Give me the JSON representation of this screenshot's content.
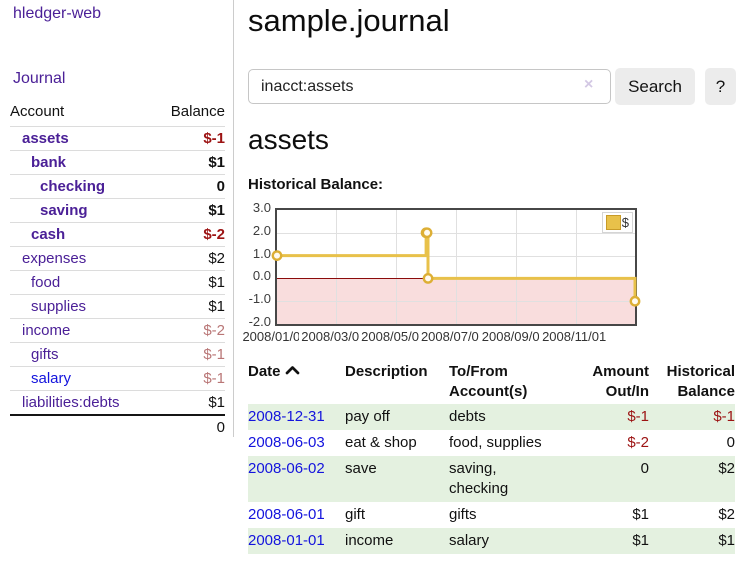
{
  "colors": {
    "link_purple": "#4b2097",
    "link_blue": "#1414dd",
    "negative_red": "#9c1313",
    "negative_light_red": "#b97676",
    "row_green": "#e4f1e0",
    "gold": "#e8c14a",
    "chart_pink": "#f9dddd",
    "zero_line_red": "#8b0b0b"
  },
  "app": {
    "brand": "hledger-web"
  },
  "sidebar": {
    "journal_link": "Journal",
    "accounts": {
      "account_header": "Account",
      "balance_header": "Balance",
      "rows": [
        {
          "name": "assets",
          "balance": "$-1",
          "indent": 1,
          "bold": true,
          "neg": true
        },
        {
          "name": "bank",
          "balance": "$1",
          "indent": 2,
          "bold": true
        },
        {
          "name": "checking",
          "balance": "0",
          "indent": 3,
          "bold": true
        },
        {
          "name": "saving",
          "balance": "$1",
          "indent": 3,
          "bold": true
        },
        {
          "name": "cash",
          "balance": "$-2",
          "indent": 2,
          "bold": true,
          "neg": true
        },
        {
          "name": "expenses",
          "balance": "$2",
          "indent": 1
        },
        {
          "name": "food",
          "balance": "$1",
          "indent": 2
        },
        {
          "name": "supplies",
          "balance": "$1",
          "indent": 2
        },
        {
          "name": "income",
          "balance": "$-2",
          "indent": 1,
          "neg_light": true
        },
        {
          "name": "gifts",
          "balance": "$-1",
          "indent": 2,
          "neg_light": true
        },
        {
          "name": "salary",
          "balance": "$-1",
          "indent": 2,
          "neg_light": true,
          "blue": true
        },
        {
          "name": "liabilities:debts",
          "balance": "$1",
          "indent": 1
        }
      ],
      "total": "0"
    }
  },
  "header": {
    "title": "sample.journal"
  },
  "search": {
    "value": "inacct:assets",
    "clear_icon": "×",
    "search_button": "Search",
    "help_button": "?"
  },
  "account_page": {
    "title": "assets",
    "chart_title": "Historical Balance:"
  },
  "chart_data": {
    "type": "line",
    "title": "Historical Balance",
    "step": true,
    "series": [
      {
        "name": "$",
        "color": "#e8c14a",
        "points": [
          [
            "2008-01-01",
            1
          ],
          [
            "2008-06-01",
            2
          ],
          [
            "2008-06-02",
            2
          ],
          [
            "2008-06-03",
            0
          ],
          [
            "2008-12-31",
            -1
          ]
        ]
      }
    ],
    "xlim": [
      "2008-01-01",
      "2008-12-31"
    ],
    "ylim": [
      -2,
      3
    ],
    "x_ticks": [
      "2008/01/01",
      "2008/03/01",
      "2008/05/01",
      "2008/07/01",
      "2008/09/01",
      "2008/11/01"
    ],
    "y_ticks": [
      "3.0",
      "2.0",
      "1.0",
      "0.0",
      "-1.0",
      "-2.0"
    ],
    "grid": true,
    "legend": {
      "label": "$",
      "swatch_color": "#e8c14a",
      "position": "top-right"
    },
    "negative_region": true
  },
  "register_table": {
    "headers": {
      "date": "Date",
      "description": "Description",
      "accounts": "To/From Account(s)",
      "amount": "Amount Out/In",
      "balance": "Historical Balance"
    },
    "rows": [
      {
        "date": "2008-12-31",
        "description": "pay off",
        "accounts": "debts",
        "amount": "$-1",
        "amount_neg": true,
        "balance": "$-1",
        "balance_neg": true
      },
      {
        "date": "2008-06-03",
        "description": "eat & shop",
        "accounts": "food, supplies",
        "amount": "$-2",
        "amount_neg": true,
        "balance": "0"
      },
      {
        "date": "2008-06-02",
        "description": "save",
        "accounts": "saving, checking",
        "amount": "0",
        "balance": "$2"
      },
      {
        "date": "2008-06-01",
        "description": "gift",
        "accounts": "gifts",
        "amount": "$1",
        "balance": "$2"
      },
      {
        "date": "2008-01-01",
        "description": "income",
        "accounts": "salary",
        "amount": "$1",
        "balance": "$1"
      }
    ]
  }
}
